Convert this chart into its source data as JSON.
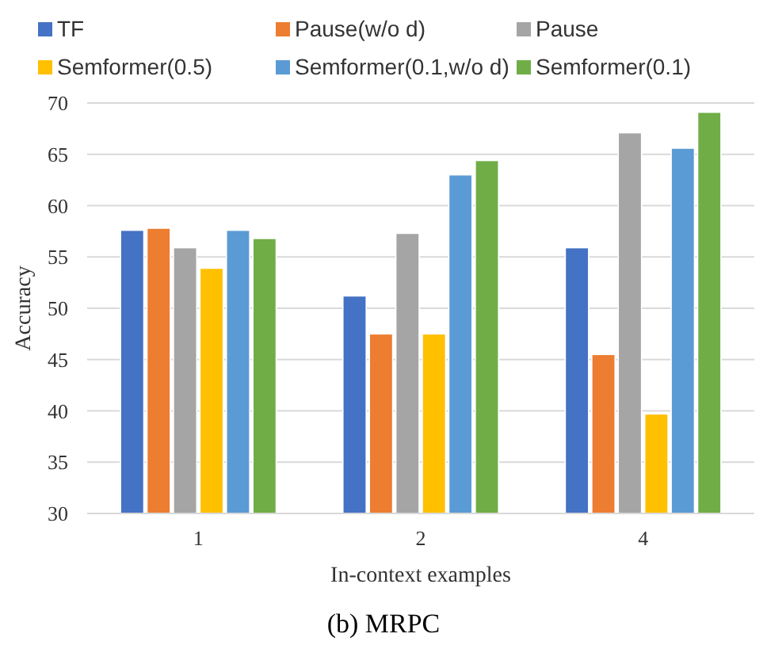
{
  "chart_data": {
    "type": "bar",
    "title": "(b) MRPC",
    "xlabel": "In-context examples",
    "ylabel": "Accuracy",
    "categories": [
      "1",
      "2",
      "4"
    ],
    "series": [
      {
        "name": "TF",
        "color": "#4472c4",
        "values": [
          57.6,
          51.2,
          55.9
        ]
      },
      {
        "name": "Pause(w/o d)",
        "color": "#ed7d31",
        "values": [
          57.8,
          47.5,
          45.5
        ]
      },
      {
        "name": "Pause",
        "color": "#a5a5a5",
        "values": [
          55.9,
          57.3,
          67.1
        ]
      },
      {
        "name": "Semformer(0.5)",
        "color": "#ffc000",
        "values": [
          53.9,
          47.5,
          39.7
        ]
      },
      {
        "name": "Semformer(0.1,w/o d)",
        "color": "#5b9bd5",
        "values": [
          57.6,
          63.0,
          65.6
        ]
      },
      {
        "name": "Semformer(0.1)",
        "color": "#70ad47",
        "values": [
          56.8,
          64.4,
          69.1
        ]
      }
    ],
    "ylim": [
      30,
      70
    ],
    "yticks": [
      30,
      35,
      40,
      45,
      50,
      55,
      60,
      65,
      70
    ],
    "grid": "y",
    "legend": "top"
  }
}
